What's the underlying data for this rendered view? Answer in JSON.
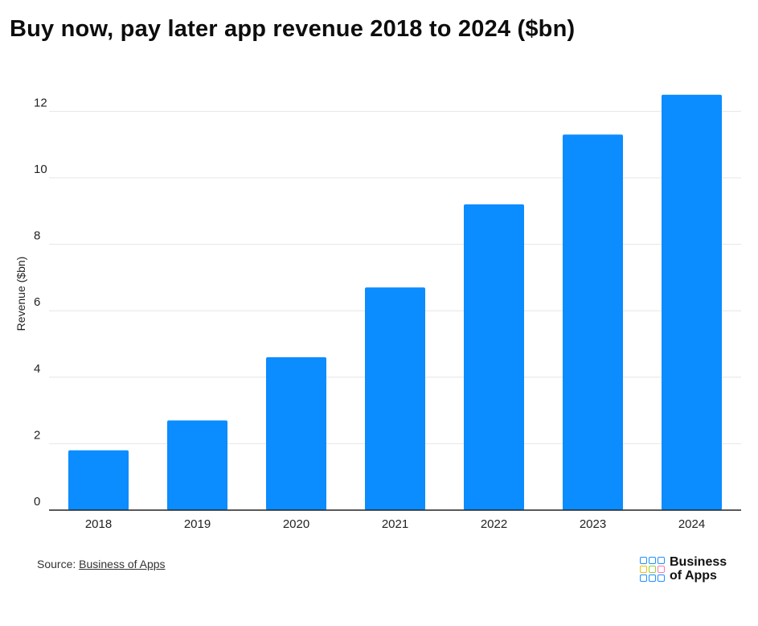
{
  "title": "Buy now, pay later app revenue 2018 to 2024 ($bn)",
  "chart_data": {
    "type": "bar",
    "categories": [
      "2018",
      "2019",
      "2020",
      "2021",
      "2022",
      "2023",
      "2024"
    ],
    "values": [
      1.8,
      2.7,
      4.6,
      6.7,
      9.2,
      11.3,
      12.5
    ],
    "ylabel": "Revenue ($bn)",
    "xlabel": "",
    "ylim": [
      0,
      12.5
    ],
    "yticks": [
      0,
      2,
      4,
      6,
      8,
      10,
      12
    ],
    "grid": true,
    "bar_color": "#0b8cff"
  },
  "footer": {
    "source_prefix": "Source:",
    "source_link": "Business of Apps",
    "logo_line1": "Business",
    "logo_line2": "of Apps",
    "logo_colors": [
      "#1e90ff",
      "#1e90ff",
      "#1e90ff",
      "#f2c200",
      "#9ccf3a",
      "#ff7aa8",
      "#1e90ff",
      "#1e90ff",
      "#1e90ff"
    ]
  }
}
